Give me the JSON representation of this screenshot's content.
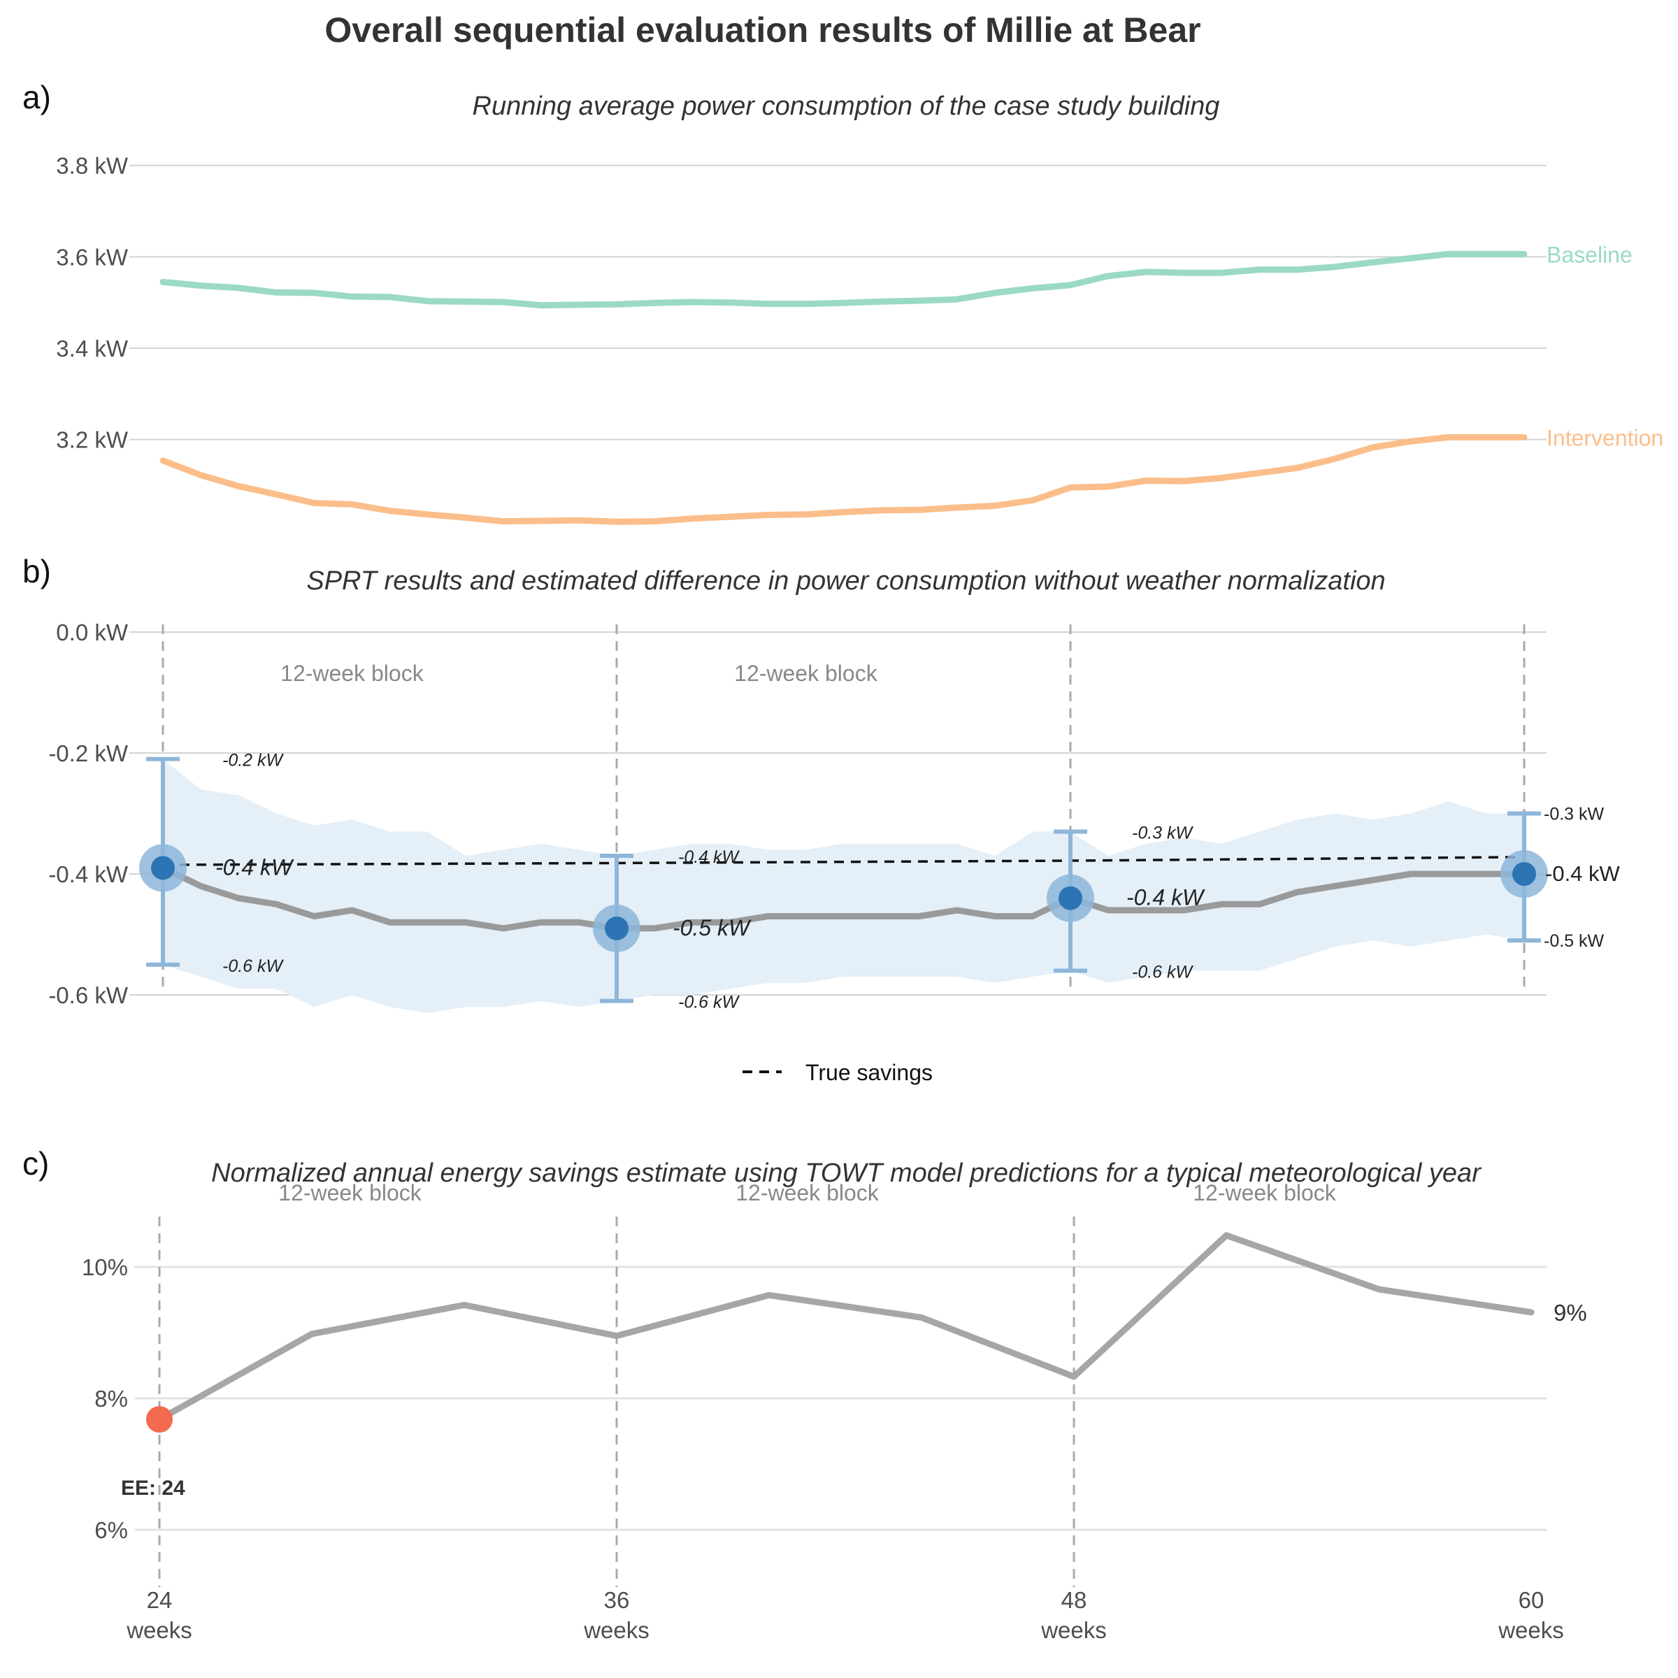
{
  "title": "Overall sequential evaluation results of Millie at Bear",
  "colors": {
    "baseline": "#9bd9c7",
    "intervention": "#fbbe8a",
    "estimate_line": "#9a9a9a",
    "sprt_point": "#2c74b4",
    "sprt_halo": "#8db6d9",
    "ci_band": "#e5eff8",
    "early_stop_point": "#f26a4f",
    "grid": "#d3d3d3",
    "axis_text": "#4d4d4d",
    "title_text": "#333333"
  },
  "chart_data": [
    {
      "panel_label": "a)",
      "type": "line",
      "title": "Running average power consumption of the case study building",
      "x_range": [
        24,
        60
      ],
      "ylim": [
        2.95,
        3.85
      ],
      "yticks": [
        3.2,
        3.4,
        3.6,
        3.8
      ],
      "ytick_labels": [
        "3.2 kW",
        "3.4 kW",
        "3.6 kW",
        "3.8 kW"
      ],
      "grid": true,
      "series": [
        {
          "name": "Baseline",
          "x": [
            24,
            25,
            26,
            27,
            28,
            29,
            30,
            31,
            32,
            33,
            34,
            35,
            36,
            37,
            38,
            39,
            40,
            41,
            42,
            43,
            44,
            45,
            46,
            47,
            48,
            49,
            50,
            51,
            52,
            53,
            54,
            55,
            56,
            57,
            58,
            59,
            60
          ],
          "values": [
            3.545,
            3.537,
            3.532,
            3.522,
            3.521,
            3.513,
            3.512,
            3.503,
            3.502,
            3.501,
            3.494,
            3.495,
            3.496,
            3.499,
            3.501,
            3.5,
            3.497,
            3.497,
            3.499,
            3.502,
            3.504,
            3.507,
            3.521,
            3.531,
            3.538,
            3.558,
            3.567,
            3.565,
            3.565,
            3.572,
            3.572,
            3.578,
            3.588,
            3.597,
            3.606,
            3.606,
            3.606
          ]
        },
        {
          "name": "Intervention",
          "x": [
            24,
            25,
            26,
            27,
            28,
            29,
            30,
            31,
            32,
            33,
            34,
            35,
            36,
            37,
            38,
            39,
            40,
            41,
            42,
            43,
            44,
            45,
            46,
            47,
            48,
            49,
            50,
            51,
            52,
            53,
            54,
            55,
            56,
            57,
            58,
            59,
            60
          ],
          "values": [
            3.154,
            3.122,
            3.098,
            3.08,
            3.061,
            3.058,
            3.044,
            3.036,
            3.029,
            3.021,
            3.022,
            3.023,
            3.02,
            3.021,
            3.027,
            3.031,
            3.035,
            3.036,
            3.041,
            3.045,
            3.046,
            3.051,
            3.055,
            3.067,
            3.095,
            3.097,
            3.11,
            3.109,
            3.116,
            3.127,
            3.138,
            3.158,
            3.183,
            3.196,
            3.205,
            3.205,
            3.205
          ]
        }
      ]
    },
    {
      "panel_label": "b)",
      "type": "line",
      "title": "SPRT results and estimated difference in power consumption without weather normalization",
      "x_range": [
        24,
        60
      ],
      "ylim": [
        -0.63,
        0.02
      ],
      "yticks": [
        0.0,
        -0.2,
        -0.4,
        -0.6
      ],
      "ytick_labels": [
        "0.0 kW",
        "-0.2 kW",
        "-0.4 kW",
        "-0.6 kW"
      ],
      "grid": true,
      "block_markers": [
        24,
        36,
        48,
        60
      ],
      "block_labels": [
        {
          "text": "12-week block",
          "x": 29
        },
        {
          "text": "12-week block",
          "x": 41
        }
      ],
      "estimate": {
        "x": [
          24,
          25,
          26,
          27,
          28,
          29,
          30,
          31,
          32,
          33,
          34,
          35,
          36,
          37,
          38,
          39,
          40,
          41,
          42,
          43,
          44,
          45,
          46,
          47,
          48,
          49,
          50,
          51,
          52,
          53,
          54,
          55,
          56,
          57,
          58,
          59,
          60
        ],
        "values": [
          -0.39,
          -0.42,
          -0.44,
          -0.45,
          -0.47,
          -0.46,
          -0.48,
          -0.48,
          -0.48,
          -0.49,
          -0.48,
          -0.48,
          -0.49,
          -0.49,
          -0.48,
          -0.48,
          -0.47,
          -0.47,
          -0.47,
          -0.47,
          -0.47,
          -0.46,
          -0.47,
          -0.47,
          -0.44,
          -0.46,
          -0.46,
          -0.46,
          -0.45,
          -0.45,
          -0.43,
          -0.42,
          -0.41,
          -0.4,
          -0.4,
          -0.4,
          -0.4
        ]
      },
      "ci_band": {
        "x": [
          24,
          25,
          26,
          27,
          28,
          29,
          30,
          31,
          32,
          33,
          34,
          35,
          36,
          37,
          38,
          39,
          40,
          41,
          42,
          43,
          44,
          45,
          46,
          47,
          48,
          49,
          50,
          51,
          52,
          53,
          54,
          55,
          56,
          57,
          58,
          59,
          60
        ],
        "upper": [
          -0.21,
          -0.26,
          -0.27,
          -0.3,
          -0.32,
          -0.31,
          -0.33,
          -0.33,
          -0.37,
          -0.36,
          -0.35,
          -0.36,
          -0.37,
          -0.36,
          -0.35,
          -0.35,
          -0.36,
          -0.36,
          -0.35,
          -0.35,
          -0.35,
          -0.35,
          -0.37,
          -0.33,
          -0.33,
          -0.37,
          -0.35,
          -0.34,
          -0.35,
          -0.33,
          -0.31,
          -0.3,
          -0.31,
          -0.3,
          -0.28,
          -0.3,
          -0.3
        ],
        "lower": [
          -0.55,
          -0.57,
          -0.59,
          -0.59,
          -0.62,
          -0.6,
          -0.62,
          -0.63,
          -0.62,
          -0.62,
          -0.61,
          -0.62,
          -0.61,
          -0.6,
          -0.6,
          -0.59,
          -0.58,
          -0.58,
          -0.57,
          -0.57,
          -0.57,
          -0.57,
          -0.58,
          -0.57,
          -0.56,
          -0.58,
          -0.57,
          -0.56,
          -0.56,
          -0.56,
          -0.54,
          -0.52,
          -0.51,
          -0.52,
          -0.51,
          -0.5,
          -0.51
        ]
      },
      "true_savings": {
        "name": "True savings",
        "x": [
          24,
          36,
          48,
          60
        ],
        "values": [
          -0.385,
          -0.382,
          -0.378,
          -0.372
        ]
      },
      "sprt_points": [
        {
          "x": 24,
          "value": -0.39,
          "lower": -0.55,
          "upper": -0.21,
          "label": "-0.4 kW",
          "lower_label": "-0.6 kW",
          "upper_label": "-0.2 kW"
        },
        {
          "x": 36,
          "value": -0.49,
          "lower": -0.61,
          "upper": -0.37,
          "label": "-0.5 kW",
          "lower_label": "-0.6 kW",
          "upper_label": "-0.4 kW"
        },
        {
          "x": 48,
          "value": -0.44,
          "lower": -0.56,
          "upper": -0.33,
          "label": "-0.4 kW",
          "lower_label": "-0.6 kW",
          "upper_label": "-0.3 kW"
        },
        {
          "x": 60,
          "value": -0.4,
          "lower": -0.51,
          "upper": -0.3,
          "label": "-0.4 kW",
          "lower_label": "-0.5 kW",
          "upper_label": "-0.3 kW"
        }
      ],
      "legend": {
        "position": "bottom",
        "entries": [
          "True savings"
        ]
      }
    },
    {
      "panel_label": "c)",
      "type": "line",
      "title": "Normalized annual energy savings estimate using TOWT model predictions for a typical meteorological year",
      "x_range": [
        24,
        60
      ],
      "xticks": [
        24,
        36,
        48,
        60
      ],
      "xtick_labels": [
        "24",
        "36",
        "48",
        "60"
      ],
      "xtick_unit": "weeks",
      "ylim": [
        5.2,
        10.9
      ],
      "yticks": [
        6,
        8,
        10
      ],
      "ytick_labels": [
        "6%",
        "8%",
        "10%"
      ],
      "grid": true,
      "block_markers": [
        24,
        36,
        48
      ],
      "block_labels": [
        {
          "text": "12-week block",
          "x": 29
        },
        {
          "text": "12-week block",
          "x": 41
        },
        {
          "text": "12-week block",
          "x": 53
        }
      ],
      "series": [
        {
          "x": [
            24,
            28,
            32,
            36,
            40,
            44,
            48,
            52,
            56,
            60
          ],
          "values": [
            7.68,
            8.98,
            9.42,
            8.95,
            9.57,
            9.23,
            8.33,
            10.48,
            9.66,
            9.31
          ]
        }
      ],
      "end_label": "9%",
      "early_stop": {
        "x": 24,
        "value": 7.68,
        "label": "EE: 24"
      }
    }
  ]
}
